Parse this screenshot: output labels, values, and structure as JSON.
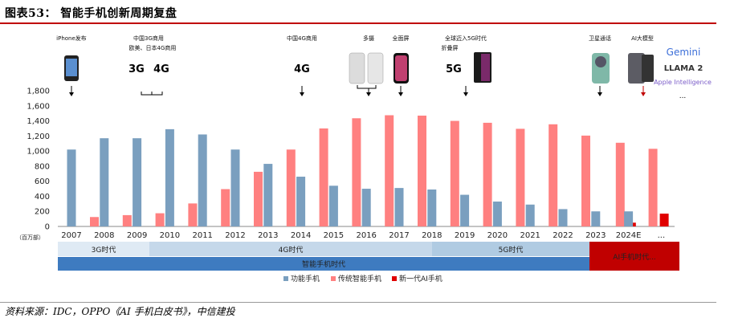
{
  "header": {
    "title": "图表53：  智能手机创新周期复盘"
  },
  "source": "资料来源：IDC，OPPO《AI 手机白皮书》，中信建投",
  "colors": {
    "feature": "#7a9fbf",
    "smart": "#ff8080",
    "ai": "#e00000",
    "era3g": "#dfeaf4",
    "era4g": "#c5d8ea",
    "era5g": "#b0cbe2",
    "smartBand": "#3e7bc0",
    "aiBand": "#c00000"
  },
  "chart_data": {
    "type": "bar",
    "title": "",
    "unit": "（百万部）",
    "ylim": [
      0,
      1800
    ],
    "yticks": [
      0,
      200,
      400,
      600,
      800,
      1000,
      1200,
      1400,
      1600,
      1800
    ],
    "ytick_labels": [
      "0",
      "200",
      "400",
      "600",
      "800",
      "1,000",
      "1,200",
      "1,400",
      "1,600",
      "1,800"
    ],
    "categories": [
      "2007",
      "2008",
      "2009",
      "2010",
      "2011",
      "2012",
      "2013",
      "2014",
      "2015",
      "2016",
      "2017",
      "2018",
      "2019",
      "2020",
      "2021",
      "2022",
      "2023",
      "2024E",
      "..."
    ],
    "series": [
      {
        "name": "功能手机",
        "values": [
          1020,
          1170,
          1170,
          1290,
          1220,
          1020,
          830,
          660,
          540,
          500,
          510,
          490,
          420,
          330,
          290,
          230,
          200,
          200,
          null
        ]
      },
      {
        "name": "传统智能手机",
        "values": [
          125,
          150,
          175,
          305,
          495,
          725,
          1020,
          1300,
          1435,
          1475,
          1470,
          1400,
          1375,
          1295,
          1355,
          1205,
          1110,
          1030,
          null
        ]
      },
      {
        "name": "新一代AI手机",
        "values": [
          null,
          null,
          null,
          null,
          null,
          null,
          null,
          null,
          null,
          null,
          null,
          null,
          null,
          null,
          null,
          null,
          50,
          170,
          null
        ]
      }
    ]
  },
  "eras": {
    "e3g": "3G时代",
    "e4g": "4G时代",
    "e5g": "5G时代",
    "smart": "智能手机时代",
    "ai": "AI手机时代..."
  },
  "annotations": {
    "iphone": "iPhone发布",
    "cn3g_1": "中国3G商用",
    "cn3g_2": "欧美、日本4G商用",
    "g3": "3G",
    "g4a": "4G",
    "cn4g": "中国4G商用",
    "g4b": "4G",
    "multicam": "多摄",
    "fullscreen": "全面屏",
    "g5_1": "全球迈入5G时代",
    "g5_2": "折叠屏",
    "g5": "5G",
    "satellite": "卫星通话",
    "ai_model": "AI大模型",
    "gemini": "Gemini",
    "llama": "LLAMA 2",
    "apple_ai": "Apple Intelligence",
    "more": "..."
  }
}
